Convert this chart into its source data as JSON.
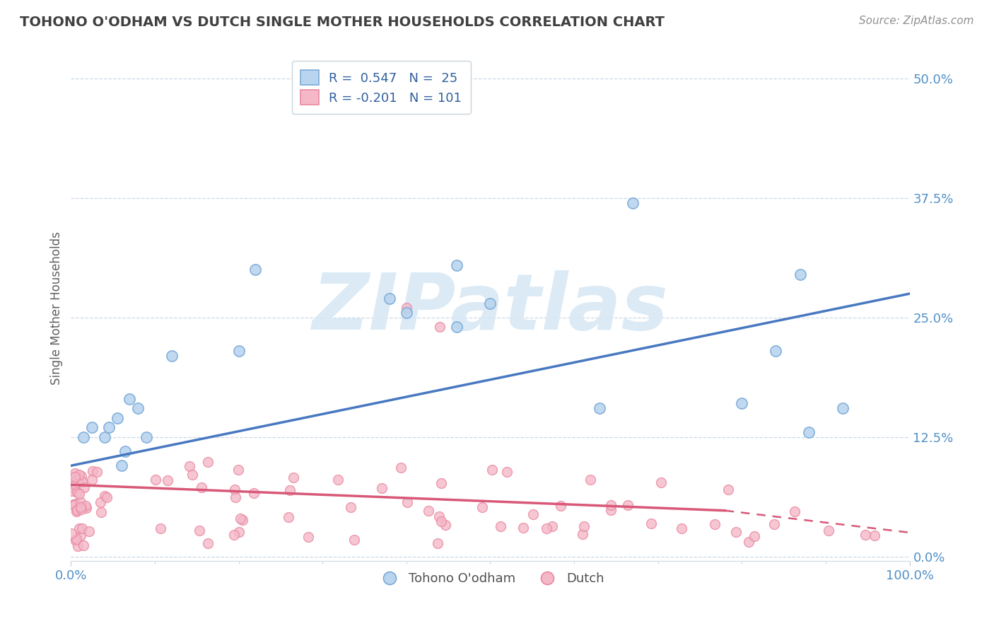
{
  "title": "TOHONO O'ODHAM VS DUTCH SINGLE MOTHER HOUSEHOLDS CORRELATION CHART",
  "source": "Source: ZipAtlas.com",
  "ylabel": "Single Mother Households",
  "xlim": [
    0.0,
    1.0
  ],
  "ylim": [
    -0.005,
    0.525
  ],
  "yticks": [
    0.0,
    0.125,
    0.25,
    0.375,
    0.5
  ],
  "ytick_labels": [
    "0.0%",
    "12.5%",
    "25.0%",
    "37.5%",
    "50.0%"
  ],
  "xtick_labels": [
    "0.0%",
    "100.0%"
  ],
  "blue_R": 0.547,
  "blue_N": 25,
  "pink_R": -0.201,
  "pink_N": 101,
  "blue_marker_face": "#b8d4ee",
  "blue_marker_edge": "#7aaad8",
  "pink_marker_face": "#f4b8c8",
  "pink_marker_edge": "#e888a0",
  "blue_line_color": "#4878c0",
  "pink_line_color": "#d85878",
  "background_color": "#ffffff",
  "grid_color": "#c8d8e8",
  "title_color": "#404040",
  "source_color": "#909090",
  "ylabel_color": "#606060",
  "tick_color": "#5090c8",
  "legend_blue_face": "#b8d4ee",
  "legend_blue_edge": "#7aaad8",
  "legend_pink_face": "#f4b8c8",
  "legend_pink_edge": "#e888a0",
  "legend_text_color": "#3060a0",
  "watermark_text": "ZIPatlas",
  "watermark_color": "#d8e8f4",
  "tohono_x": [
    0.015,
    0.025,
    0.04,
    0.045,
    0.055,
    0.06,
    0.065,
    0.07,
    0.08,
    0.09,
    0.12,
    0.2,
    0.22,
    0.38,
    0.4,
    0.46,
    0.46,
    0.5,
    0.63,
    0.67,
    0.8,
    0.84,
    0.87,
    0.88,
    0.92
  ],
  "tohono_y": [
    0.125,
    0.135,
    0.125,
    0.135,
    0.145,
    0.095,
    0.11,
    0.165,
    0.155,
    0.125,
    0.21,
    0.215,
    0.3,
    0.27,
    0.255,
    0.305,
    0.24,
    0.265,
    0.155,
    0.37,
    0.16,
    0.215,
    0.295,
    0.13,
    0.155
  ],
  "blue_line_x0": 0.0,
  "blue_line_y0": 0.095,
  "blue_line_x1": 1.0,
  "blue_line_y1": 0.275,
  "pink_line_x0": 0.0,
  "pink_line_y0": 0.075,
  "pink_line_x1_solid": 0.78,
  "pink_line_y1_solid": 0.048,
  "pink_line_x1_dash": 1.0,
  "pink_line_y1_dash": 0.025
}
